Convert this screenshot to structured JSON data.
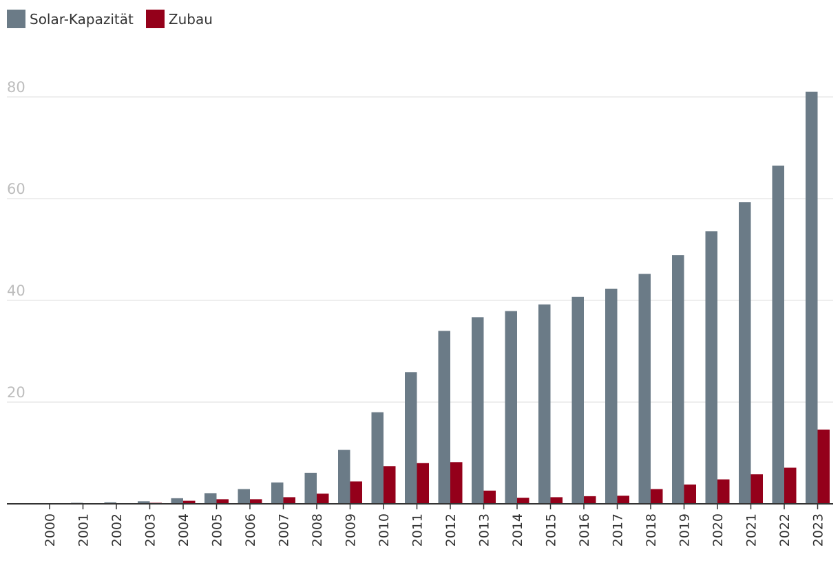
{
  "chart_data": {
    "type": "bar",
    "title": "",
    "xlabel": "",
    "ylabel": "",
    "ylim": [
      0,
      85
    ],
    "yticks": [
      20,
      40,
      60,
      80
    ],
    "grid": true,
    "legend_placement": "top-left",
    "categories": [
      "2000",
      "2001",
      "2002",
      "2003",
      "2004",
      "2005",
      "2006",
      "2007",
      "2008",
      "2009",
      "2010",
      "2011",
      "2012",
      "2013",
      "2014",
      "2015",
      "2016",
      "2017",
      "2018",
      "2019",
      "2020",
      "2021",
      "2022",
      "2023"
    ],
    "series": [
      {
        "name": "Solar-Kapazität",
        "color": "#6b7b87",
        "values": [
          0.1,
          0.2,
          0.3,
          0.5,
          1.1,
          2.1,
          2.9,
          4.2,
          6.1,
          10.6,
          18.0,
          25.9,
          34.0,
          36.7,
          37.9,
          39.2,
          40.7,
          42.3,
          45.2,
          48.9,
          53.6,
          59.3,
          66.5,
          81.0
        ]
      },
      {
        "name": "Zubau",
        "color": "#94001a",
        "values": [
          0.0,
          0.1,
          0.1,
          0.2,
          0.6,
          0.9,
          0.9,
          1.3,
          2.0,
          4.4,
          7.4,
          8.0,
          8.2,
          2.6,
          1.2,
          1.3,
          1.5,
          1.6,
          2.9,
          3.8,
          4.8,
          5.8,
          7.1,
          14.6
        ]
      }
    ]
  }
}
